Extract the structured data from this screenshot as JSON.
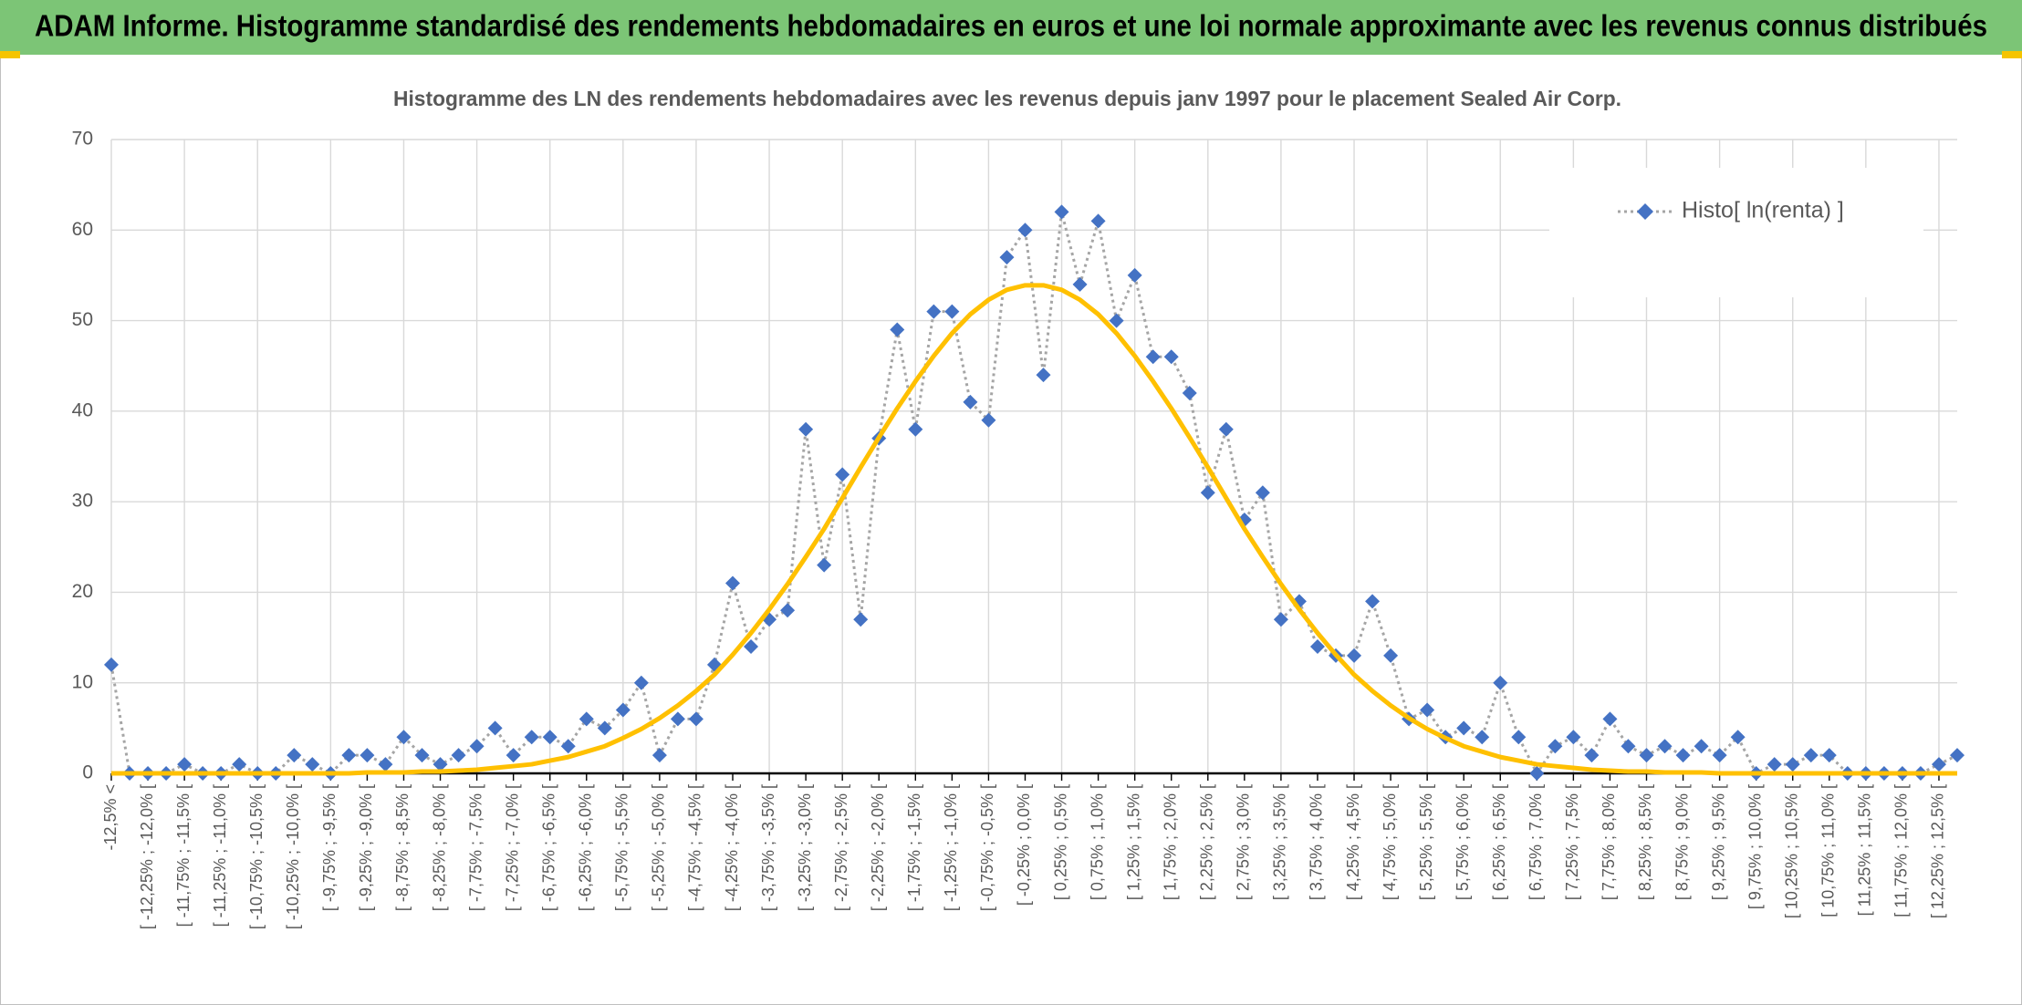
{
  "header": {
    "title": "ADAM Informe. Histogramme standardisé des rendements hebdomadaires en euros et une loi normale approximante avec les revenus connus distribués"
  },
  "chart_data": {
    "type": "line",
    "title": "Histogramme des LN des rendements hebdomadaires avec les revenus depuis janv 1997 pour le placement Sealed Air Corp.",
    "categories": [
      "-12,5% <",
      null,
      "[ -12,25% ; -12,0% [",
      null,
      "[ -11,75% ; -11,5% [",
      null,
      "[ -11,25% ; -11,0% [",
      null,
      "[ -10,75% ; -10,5% [",
      null,
      "[ -10,25% ; -10,0% [",
      null,
      "[ -9,75% ; -9,5% [",
      null,
      "[ -9,25% ; -9,0% [",
      null,
      "[ -8,75% ; -8,5% [",
      null,
      "[ -8,25% ; -8,0% [",
      null,
      "[ -7,75% ; -7,5% [",
      null,
      "[ -7,25% ; -7,0% [",
      null,
      "[ -6,75% ; -6,5% [",
      null,
      "[ -6,25% ; -6,0% [",
      null,
      "[ -5,75% ; -5,5% [",
      null,
      "[ -5,25% ; -5,0% [",
      null,
      "[ -4,75% ; -4,5% [",
      null,
      "[ -4,25% ; -4,0% [",
      null,
      "[ -3,75% ; -3,5% [",
      null,
      "[ -3,25% ; -3,0% [",
      null,
      "[ -2,75% ; -2,5% [",
      null,
      "[ -2,25% ; -2,0% [",
      null,
      "[ -1,75% ; -1,5% [",
      null,
      "[ -1,25% ; -1,0% [",
      null,
      "[ -0,75% ; -0,5% [",
      null,
      "[ -0,25% ; 0,0% [",
      null,
      "[ 0,25% ; 0,5% [",
      null,
      "[ 0,75% ; 1,0% [",
      null,
      "[ 1,25% ; 1,5% [",
      null,
      "[ 1,75% ; 2,0% [",
      null,
      "[ 2,25% ; 2,5% [",
      null,
      "[ 2,75% ; 3,0% [",
      null,
      "[ 3,25% ; 3,5% [",
      null,
      "[ 3,75% ; 4,0% [",
      null,
      "[ 4,25% ; 4,5% [",
      null,
      "[ 4,75% ; 5,0% [",
      null,
      "[ 5,25% ; 5,5% [",
      null,
      "[ 5,75% ; 6,0% [",
      null,
      "[ 6,25% ; 6,5% [",
      null,
      "[ 6,75% ; 7,0% [",
      null,
      "[ 7,25% ; 7,5% [",
      null,
      "[ 7,75% ; 8,0% [",
      null,
      "[ 8,25% ; 8,5% [",
      null,
      "[ 8,75% ; 9,0% [",
      null,
      "[ 9,25% ; 9,5% [",
      null,
      "[ 9,75% ; 10,0% [",
      null,
      "[ 10,25% ; 10,5% [",
      null,
      "[ 10,75% ; 11,0% [",
      null,
      "[ 11,25% ; 11,5% [",
      null,
      "[ 11,75% ; 12,0% [",
      null,
      "[ 12,25% ; 12,5% [",
      null
    ],
    "series": [
      {
        "name": "Histo[ ln(renta) ]",
        "color": "#4472c4",
        "line_color": "#a5a5a5",
        "line_style": "dotted",
        "marker": "diamond",
        "values": [
          12,
          0,
          0,
          0,
          1,
          0,
          0,
          1,
          0,
          0,
          2,
          1,
          0,
          2,
          2,
          1,
          4,
          2,
          1,
          2,
          3,
          5,
          2,
          4,
          4,
          3,
          6,
          5,
          7,
          10,
          2,
          6,
          6,
          12,
          21,
          14,
          17,
          18,
          38,
          23,
          33,
          17,
          37,
          49,
          38,
          51,
          51,
          41,
          39,
          57,
          60,
          44,
          62,
          54,
          61,
          50,
          55,
          46,
          46,
          42,
          31,
          38,
          28,
          31,
          17,
          19,
          14,
          13,
          13,
          19,
          13,
          6,
          7,
          4,
          5,
          4,
          10,
          4,
          0,
          3,
          4,
          2,
          6,
          3,
          2,
          3,
          2,
          3,
          2,
          4,
          0,
          1,
          1,
          2,
          2,
          0,
          0,
          0,
          0,
          0,
          1,
          2
        ]
      },
      {
        "color": "#ffc000",
        "line_style": "solid",
        "marker": "none",
        "values": [
          0,
          0,
          0,
          0,
          0,
          0,
          0,
          0,
          0,
          0,
          0,
          0,
          0,
          0,
          0.1,
          0.1,
          0.1,
          0.2,
          0.2,
          0.3,
          0.4,
          0.6,
          0.8,
          1,
          1.4,
          1.8,
          2.4,
          3,
          3.9,
          4.9,
          6.1,
          7.5,
          9.1,
          10.9,
          13.1,
          15.5,
          18.1,
          20.9,
          23.9,
          27,
          30.4,
          33.8,
          37.1,
          40.3,
          43.3,
          46.1,
          48.6,
          50.7,
          52.3,
          53.4,
          53.9,
          53.9,
          53.4,
          52.3,
          50.7,
          48.6,
          46.1,
          43.3,
          40.3,
          37.1,
          33.8,
          30.4,
          27,
          23.9,
          20.9,
          18.1,
          15.5,
          13.1,
          10.9,
          9.1,
          7.5,
          6.1,
          4.9,
          3.9,
          3,
          2.4,
          1.8,
          1.4,
          1,
          0.8,
          0.6,
          0.4,
          0.3,
          0.2,
          0.2,
          0.1,
          0.1,
          0.1,
          0,
          0,
          0,
          0,
          0,
          0,
          0,
          0,
          0,
          0,
          0,
          0,
          0,
          0
        ]
      }
    ],
    "ylim": [
      0,
      70
    ],
    "yticks": [
      0,
      10,
      20,
      30,
      40,
      50,
      60,
      70
    ],
    "grid": true,
    "legend": "top-right"
  }
}
